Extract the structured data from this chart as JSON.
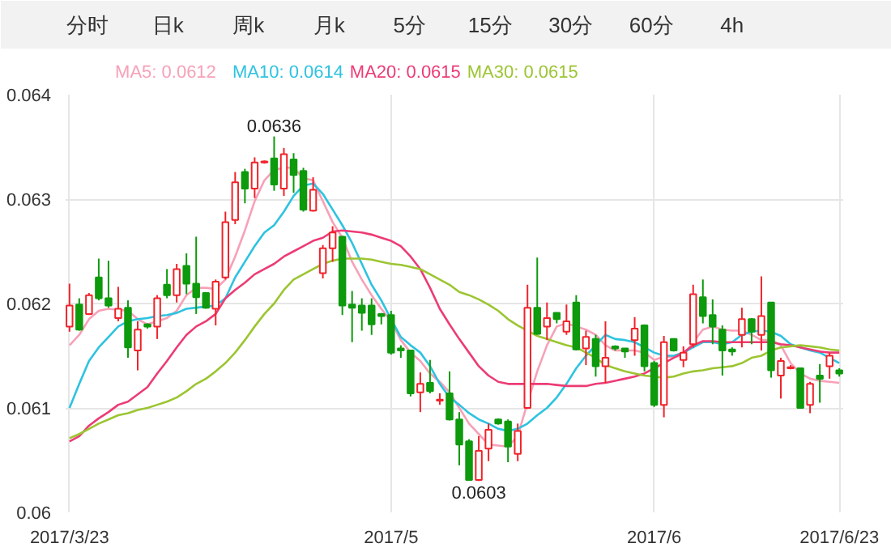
{
  "chart_data": {
    "type": "candlestick",
    "categories": [
      "2017/3/23",
      null,
      null,
      null,
      null,
      null,
      null,
      null,
      null,
      null,
      null,
      null,
      null,
      null,
      null,
      null,
      null,
      null,
      null,
      null,
      null,
      null,
      null,
      null,
      null,
      null,
      null,
      null,
      null,
      null,
      null,
      null,
      null,
      "2017/5",
      null,
      null,
      null,
      null,
      null,
      null,
      null,
      null,
      null,
      null,
      null,
      null,
      null,
      null,
      null,
      null,
      null,
      null,
      null,
      null,
      null,
      null,
      null,
      null,
      null,
      null,
      "2017/6",
      null,
      null,
      null,
      null,
      null,
      null,
      null,
      null,
      null,
      null,
      null,
      null,
      null,
      null,
      null,
      null,
      null,
      null,
      "2017/6/23"
    ],
    "ohlc": [
      [
        0.06178,
        0.06219,
        0.06173,
        0.06198
      ],
      [
        0.06199,
        0.06205,
        0.06174,
        0.06175
      ],
      [
        0.0619,
        0.0621,
        0.06189,
        0.06208
      ],
      [
        0.06225,
        0.06243,
        0.06203,
        0.06205
      ],
      [
        0.06205,
        0.06241,
        0.06196,
        0.06198
      ],
      [
        0.06186,
        0.06216,
        0.06183,
        0.06195
      ],
      [
        0.06196,
        0.06203,
        0.06148,
        0.06158
      ],
      [
        0.06155,
        0.06183,
        0.06136,
        0.06175
      ],
      [
        0.0618,
        0.06181,
        0.06176,
        0.06178
      ],
      [
        0.06178,
        0.06208,
        0.06166,
        0.06205
      ],
      [
        0.06218,
        0.06233,
        0.06205,
        0.06208
      ],
      [
        0.06208,
        0.06238,
        0.06201,
        0.06233
      ],
      [
        0.06236,
        0.06248,
        0.06209,
        0.06219
      ],
      [
        0.06219,
        0.06264,
        0.0619,
        0.06206
      ],
      [
        0.0621,
        0.06211,
        0.06195,
        0.06196
      ],
      [
        0.06195,
        0.06223,
        0.06179,
        0.06221
      ],
      [
        0.06225,
        0.06288,
        0.06223,
        0.06278
      ],
      [
        0.0628,
        0.06326,
        0.06276,
        0.06316
      ],
      [
        0.06326,
        0.06329,
        0.06296,
        0.0631
      ],
      [
        0.0631,
        0.0634,
        0.06301,
        0.06335
      ],
      [
        0.06335,
        0.06337,
        0.06334,
        0.06336
      ],
      [
        0.06339,
        0.0636,
        0.06308,
        0.06314
      ],
      [
        0.0631,
        0.06349,
        0.06303,
        0.06343
      ],
      [
        0.06338,
        0.06344,
        0.06306,
        0.06323
      ],
      [
        0.06327,
        0.0633,
        0.06288,
        0.0629
      ],
      [
        0.06289,
        0.06321,
        0.06288,
        0.06309
      ],
      [
        0.06229,
        0.06256,
        0.06224,
        0.06253
      ],
      [
        0.06253,
        0.06274,
        0.0624,
        0.06268
      ],
      [
        0.06264,
        0.06265,
        0.06189,
        0.06198
      ],
      [
        0.06199,
        0.06212,
        0.06163,
        0.06196
      ],
      [
        0.06198,
        0.06205,
        0.06174,
        0.06191
      ],
      [
        0.06198,
        0.06205,
        0.0617,
        0.0618
      ],
      [
        0.0619,
        0.06191,
        0.0618,
        0.06188
      ],
      [
        0.06189,
        0.06193,
        0.06151,
        0.06153
      ],
      [
        0.06157,
        0.0616,
        0.06148,
        0.06155
      ],
      [
        0.06155,
        0.06155,
        0.06111,
        0.06114
      ],
      [
        0.06115,
        0.06134,
        0.06096,
        0.06123
      ],
      [
        0.06124,
        0.06146,
        0.06114,
        0.06116
      ],
      [
        0.06107,
        0.06114,
        0.06103,
        0.06108
      ],
      [
        0.06114,
        0.06135,
        0.06088,
        0.06089
      ],
      [
        0.06089,
        0.06096,
        0.06045,
        0.06065
      ],
      [
        0.06068,
        0.0607,
        0.06031,
        0.06031
      ],
      [
        0.06031,
        0.06073,
        0.0603,
        0.06059
      ],
      [
        0.06061,
        0.06085,
        0.06049,
        0.06079
      ],
      [
        0.06089,
        0.0609,
        0.06084,
        0.06085
      ],
      [
        0.06087,
        0.06089,
        0.06048,
        0.06063
      ],
      [
        0.06056,
        0.06085,
        0.06049,
        0.06078
      ],
      [
        0.061,
        0.06218,
        0.06099,
        0.06196
      ],
      [
        0.06196,
        0.06244,
        0.0617,
        0.06171
      ],
      [
        0.06178,
        0.06201,
        0.06165,
        0.06186
      ],
      [
        0.06191,
        0.06191,
        0.06181,
        0.06185
      ],
      [
        0.06173,
        0.06199,
        0.0617,
        0.06183
      ],
      [
        0.06201,
        0.06208,
        0.06155,
        0.06156
      ],
      [
        0.06157,
        0.06174,
        0.06141,
        0.06168
      ],
      [
        0.06166,
        0.0617,
        0.0613,
        0.0614
      ],
      [
        0.0614,
        0.06183,
        0.06124,
        0.06148
      ],
      [
        0.06159,
        0.0616,
        0.06155,
        0.06157
      ],
      [
        0.06157,
        0.06157,
        0.06148,
        0.06154
      ],
      [
        0.06165,
        0.06187,
        0.0615,
        0.06176
      ],
      [
        0.06179,
        0.0618,
        0.06135,
        0.0614
      ],
      [
        0.06143,
        0.06145,
        0.06101,
        0.06103
      ],
      [
        0.06103,
        0.06169,
        0.06091,
        0.06163
      ],
      [
        0.06166,
        0.06166,
        0.06154,
        0.06155
      ],
      [
        0.06146,
        0.06159,
        0.06139,
        0.06153
      ],
      [
        0.06161,
        0.06218,
        0.06158,
        0.06209
      ],
      [
        0.06206,
        0.06223,
        0.06181,
        0.06188
      ],
      [
        0.06189,
        0.06204,
        0.06161,
        0.06178
      ],
      [
        0.06175,
        0.06179,
        0.06131,
        0.06155
      ],
      [
        0.06156,
        0.06158,
        0.0615,
        0.06154
      ],
      [
        0.0617,
        0.06196,
        0.06158,
        0.06185
      ],
      [
        0.06185,
        0.06186,
        0.06161,
        0.06173
      ],
      [
        0.0617,
        0.06226,
        0.06155,
        0.06188
      ],
      [
        0.06201,
        0.06201,
        0.06129,
        0.06136
      ],
      [
        0.06131,
        0.06148,
        0.06109,
        0.06145
      ],
      [
        0.06138,
        0.06141,
        0.06137,
        0.06139
      ],
      [
        0.06138,
        0.06138,
        0.061,
        0.061
      ],
      [
        0.06103,
        0.06125,
        0.06095,
        0.06123
      ],
      [
        0.06131,
        0.06142,
        0.06105,
        0.06128
      ],
      [
        0.0614,
        0.06153,
        0.06128,
        0.0615
      ],
      [
        0.06136,
        0.06138,
        0.0613,
        0.06133
      ]
    ],
    "colors": [
      "#f0232a",
      "#0d9a0d",
      "#f0232a",
      "#0d9a0d",
      "#0d9a0d",
      "#f0232a",
      "#0d9a0d",
      "#f0232a",
      "#0d9a0d",
      "#f0232a",
      "#0d9a0d",
      "#f0232a",
      "#0d9a0d",
      "#0d9a0d",
      "#0d9a0d",
      "#f0232a",
      "#f0232a",
      "#f0232a",
      "#0d9a0d",
      "#f0232a",
      "#f0232a",
      "#0d9a0d",
      "#f0232a",
      "#0d9a0d",
      "#0d9a0d",
      "#f0232a",
      "#f0232a",
      "#f0232a",
      "#0d9a0d",
      "#0d9a0d",
      "#0d9a0d",
      "#0d9a0d",
      "#0d9a0d",
      "#0d9a0d",
      "#0d9a0d",
      "#0d9a0d",
      "#f0232a",
      "#0d9a0d",
      "#f0232a",
      "#0d9a0d",
      "#0d9a0d",
      "#0d9a0d",
      "#f0232a",
      "#f0232a",
      "#0d9a0d",
      "#0d9a0d",
      "#f0232a",
      "#f0232a",
      "#0d9a0d",
      "#f0232a",
      "#0d9a0d",
      "#f0232a",
      "#0d9a0d",
      "#f0232a",
      "#0d9a0d",
      "#f0232a",
      "#0d9a0d",
      "#0d9a0d",
      "#f0232a",
      "#0d9a0d",
      "#0d9a0d",
      "#f0232a",
      "#0d9a0d",
      "#f0232a",
      "#f0232a",
      "#0d9a0d",
      "#0d9a0d",
      "#0d9a0d",
      "#0d9a0d",
      "#f0232a",
      "#0d9a0d",
      "#f0232a",
      "#0d9a0d",
      "#f0232a",
      "#f0232a",
      "#0d9a0d",
      "#f0232a",
      "#0d9a0d",
      "#f0232a",
      "#0d9a0d"
    ],
    "series": [
      {
        "type": "line",
        "name": "MA5: 0.0612",
        "color": "#f7a1b8",
        "values": [
          0.0616,
          0.0617,
          0.06185,
          0.06193,
          0.06195,
          0.06194,
          0.06193,
          0.06185,
          0.0618,
          0.06183,
          0.06186,
          0.06193,
          0.06208,
          0.06215,
          0.06215,
          0.06214,
          0.06223,
          0.06245,
          0.0627,
          0.06298,
          0.06318,
          0.06328,
          0.0633,
          0.0633,
          0.0632,
          0.06318,
          0.06298,
          0.06278,
          0.06263,
          0.0624,
          0.06223,
          0.06208,
          0.06195,
          0.06183,
          0.06165,
          0.06153,
          0.06145,
          0.06133,
          0.06125,
          0.06115,
          0.061,
          0.06085,
          0.06075,
          0.06065,
          0.06064,
          0.06063,
          0.06073,
          0.06105,
          0.06135,
          0.0616,
          0.06178,
          0.06181,
          0.06178,
          0.06175,
          0.0617,
          0.0616,
          0.06155,
          0.06155,
          0.06155,
          0.06153,
          0.06146,
          0.06149,
          0.06149,
          0.0615,
          0.06163,
          0.06175,
          0.06178,
          0.06175,
          0.06174,
          0.06174,
          0.0617,
          0.06165,
          0.06165,
          0.0616,
          0.06143,
          0.06133,
          0.06128,
          0.06126,
          0.06125,
          0.06124
        ]
      },
      {
        "type": "line",
        "name": "MA10: 0.0614",
        "color": "#2ec3e0",
        "values": [
          0.061,
          0.06123,
          0.06145,
          0.06158,
          0.06168,
          0.06178,
          0.06183,
          0.06185,
          0.06186,
          0.06188,
          0.06189,
          0.06191,
          0.06195,
          0.06196,
          0.06197,
          0.06198,
          0.06205,
          0.06225,
          0.0624,
          0.06255,
          0.06268,
          0.06275,
          0.06288,
          0.06303,
          0.06313,
          0.06315,
          0.06305,
          0.0629,
          0.06275,
          0.06258,
          0.06238,
          0.06218,
          0.06203,
          0.06185,
          0.06168,
          0.0616,
          0.06153,
          0.0614,
          0.06123,
          0.0611,
          0.06103,
          0.06095,
          0.06089,
          0.06085,
          0.0608,
          0.06078,
          0.0608,
          0.06085,
          0.06093,
          0.061,
          0.0611,
          0.06123,
          0.06138,
          0.0615,
          0.0616,
          0.0617,
          0.06166,
          0.06165,
          0.06163,
          0.06158,
          0.06153,
          0.0615,
          0.0615,
          0.06153,
          0.06158,
          0.06163,
          0.06163,
          0.06161,
          0.06163,
          0.0617,
          0.06173,
          0.06174,
          0.06173,
          0.06169,
          0.06161,
          0.06158,
          0.06155,
          0.06153,
          0.06148,
          0.06143
        ]
      },
      {
        "type": "line",
        "name": "MA20: 0.0615",
        "color": "#ec3c74",
        "values": [
          0.06068,
          0.06073,
          0.06083,
          0.0609,
          0.06096,
          0.06103,
          0.06106,
          0.06113,
          0.0612,
          0.06133,
          0.06145,
          0.06158,
          0.0617,
          0.06178,
          0.06183,
          0.0619,
          0.06205,
          0.06213,
          0.0622,
          0.06228,
          0.06233,
          0.06238,
          0.06245,
          0.0625,
          0.06255,
          0.0626,
          0.06263,
          0.06269,
          0.0627,
          0.06269,
          0.06268,
          0.06266,
          0.06263,
          0.0626,
          0.06255,
          0.06245,
          0.06233,
          0.06215,
          0.06195,
          0.0618,
          0.06166,
          0.06153,
          0.0614,
          0.06131,
          0.06125,
          0.06123,
          0.06123,
          0.06123,
          0.06123,
          0.06123,
          0.06122,
          0.06121,
          0.06121,
          0.06121,
          0.06123,
          0.06124,
          0.06126,
          0.06128,
          0.0613,
          0.06133,
          0.06138,
          0.06143,
          0.06148,
          0.06153,
          0.0616,
          0.06164,
          0.06164,
          0.06163,
          0.06163,
          0.06163,
          0.06163,
          0.06163,
          0.06163,
          0.06161,
          0.0616,
          0.06158,
          0.06156,
          0.06154,
          0.06153,
          0.06153
        ]
      },
      {
        "type": "line",
        "name": "MA30: 0.0615",
        "color": "#9cc532",
        "values": [
          0.06071,
          0.06075,
          0.0608,
          0.06085,
          0.06089,
          0.06093,
          0.06095,
          0.06098,
          0.061,
          0.06103,
          0.06106,
          0.0611,
          0.06116,
          0.06123,
          0.06128,
          0.06135,
          0.06143,
          0.06153,
          0.06165,
          0.06178,
          0.0619,
          0.062,
          0.06213,
          0.06223,
          0.06228,
          0.06233,
          0.06238,
          0.06241,
          0.06243,
          0.06243,
          0.06243,
          0.06242,
          0.0624,
          0.06238,
          0.06237,
          0.06235,
          0.06233,
          0.06228,
          0.06223,
          0.06218,
          0.06211,
          0.06208,
          0.06204,
          0.06199,
          0.06193,
          0.06185,
          0.06179,
          0.06174,
          0.06169,
          0.06166,
          0.06163,
          0.0616,
          0.06158,
          0.06153,
          0.06148,
          0.06141,
          0.06138,
          0.06135,
          0.06133,
          0.06131,
          0.0613,
          0.06129,
          0.0613,
          0.06133,
          0.06135,
          0.06136,
          0.06138,
          0.06139,
          0.0614,
          0.06143,
          0.06148,
          0.0615,
          0.06155,
          0.06158,
          0.06159,
          0.0616,
          0.06159,
          0.06158,
          0.06156,
          0.06155
        ]
      }
    ],
    "ylim": [
      0.06,
      0.064
    ],
    "yticks": [
      0.06,
      0.061,
      0.062,
      0.063,
      0.064
    ],
    "grid": true,
    "legend": "top",
    "annotations": [
      "分时",
      "日k",
      "周k",
      "月k",
      "5分",
      "15分",
      "30分",
      "60分",
      "4h",
      {
        "text": "0.0636",
        "y": 0.0636
      },
      {
        "text": "0.0603",
        "y": 0.0603
      }
    ]
  }
}
